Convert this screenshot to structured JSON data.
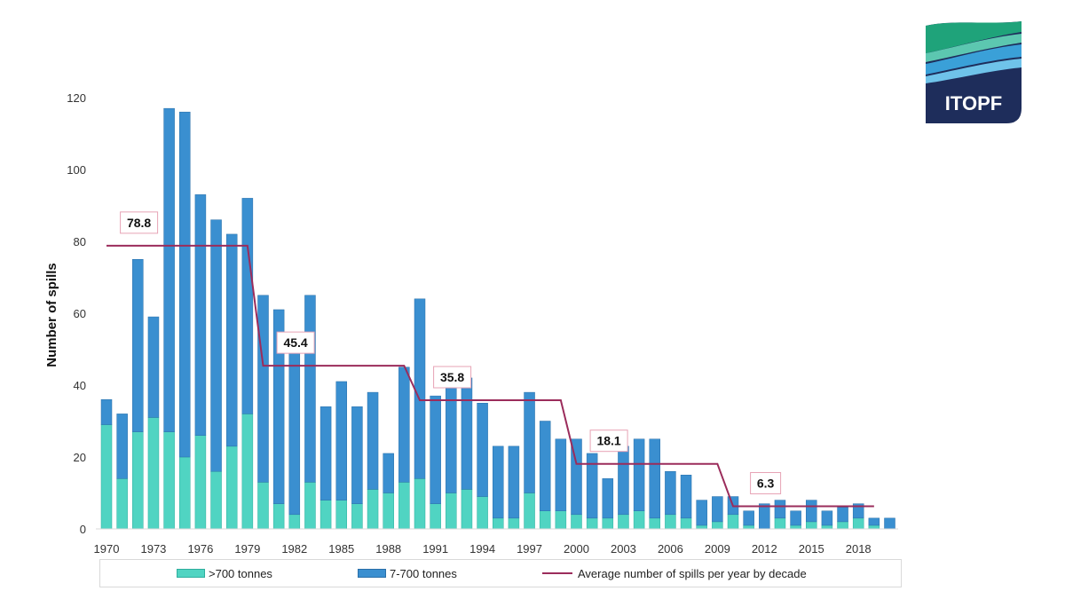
{
  "logo": {
    "text": "ITOPF"
  },
  "chart_data": {
    "type": "bar",
    "stacked": true,
    "ylabel": "Number of spills",
    "ylim": [
      0,
      120
    ],
    "yticks": [
      0,
      20,
      40,
      60,
      80,
      100,
      120
    ],
    "categories": [
      1970,
      1971,
      1972,
      1973,
      1974,
      1975,
      1976,
      1977,
      1978,
      1979,
      1980,
      1981,
      1982,
      1983,
      1984,
      1985,
      1986,
      1987,
      1988,
      1989,
      1990,
      1991,
      1992,
      1993,
      1994,
      1995,
      1996,
      1997,
      1998,
      1999,
      2000,
      2001,
      2002,
      2003,
      2004,
      2005,
      2006,
      2007,
      2008,
      2009,
      2010,
      2011,
      2012,
      2013,
      2014,
      2015,
      2016,
      2017,
      2018,
      2019,
      2020
    ],
    "xtick_labels": [
      "1970",
      "1973",
      "1976",
      "1979",
      "1982",
      "1985",
      "1988",
      "1991",
      "1994",
      "1997",
      "2000",
      "2003",
      "2006",
      "2009",
      "2012",
      "2015",
      "2018"
    ],
    "series": [
      {
        "name": ">700 tonnes",
        "color": "#50d4c2",
        "values": [
          29,
          14,
          27,
          31,
          27,
          20,
          26,
          16,
          23,
          32,
          13,
          7,
          4,
          13,
          8,
          8,
          7,
          11,
          10,
          13,
          14,
          7,
          10,
          11,
          9,
          3,
          3,
          10,
          5,
          5,
          4,
          3,
          3,
          4,
          5,
          3,
          4,
          3,
          1,
          2,
          4,
          1,
          0,
          3,
          1,
          2,
          1,
          2,
          3,
          1,
          0
        ]
      },
      {
        "name": "7-700 tonnes",
        "color": "#3a8fd0",
        "values": [
          7,
          18,
          48,
          28,
          90,
          96,
          67,
          70,
          59,
          60,
          52,
          54,
          46,
          52,
          26,
          33,
          27,
          27,
          11,
          32,
          50,
          30,
          31,
          31,
          26,
          20,
          20,
          28,
          25,
          20,
          21,
          18,
          11,
          19,
          20,
          22,
          12,
          12,
          7,
          7,
          5,
          4,
          7,
          5,
          4,
          6,
          4,
          4,
          4,
          2,
          3
        ]
      }
    ],
    "averages": {
      "name": "Average number of spills per year by decade",
      "color": "#9b2c5b",
      "segments": [
        {
          "start": 1970,
          "end": 1979,
          "value": 78.8,
          "label": "78.8"
        },
        {
          "start": 1980,
          "end": 1989,
          "value": 45.4,
          "label": "45.4"
        },
        {
          "start": 1990,
          "end": 1999,
          "value": 35.8,
          "label": "35.8"
        },
        {
          "start": 2000,
          "end": 2009,
          "value": 18.1,
          "label": "18.1"
        },
        {
          "start": 2010,
          "end": 2019,
          "value": 6.3,
          "label": "6.3"
        }
      ]
    }
  },
  "legend": {
    "items": [
      {
        "label": ">700 tonnes"
      },
      {
        "label": "7-700 tonnes"
      },
      {
        "label": "Average number of spills per year by decade"
      }
    ]
  }
}
